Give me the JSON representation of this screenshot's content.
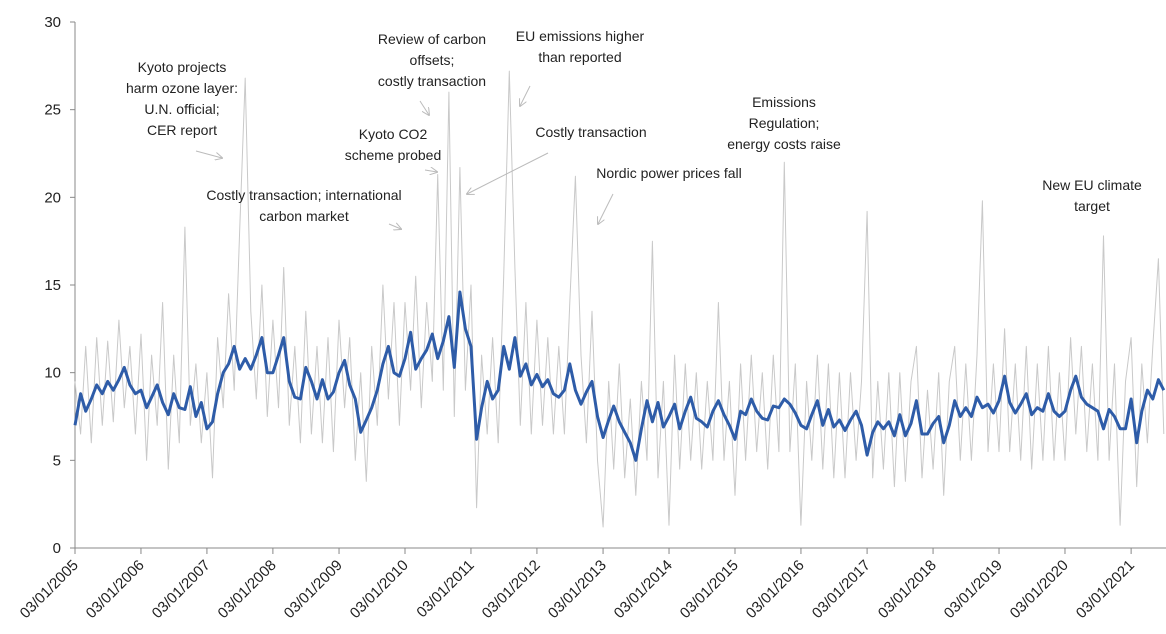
{
  "chart_data": {
    "type": "line",
    "x": [
      "2005-01-03",
      "2005-02-03",
      "2005-03-03",
      "2005-04-03",
      "2005-05-03",
      "2005-06-03",
      "2005-07-03",
      "2005-08-03",
      "2005-09-03",
      "2005-10-03",
      "2005-11-03",
      "2005-12-03",
      "2006-01-03",
      "2006-02-03",
      "2006-03-03",
      "2006-04-03",
      "2006-05-03",
      "2006-06-03",
      "2006-07-03",
      "2006-08-03",
      "2006-09-03",
      "2006-10-03",
      "2006-11-03",
      "2006-12-03",
      "2007-01-03",
      "2007-02-03",
      "2007-03-03",
      "2007-04-03",
      "2007-05-03",
      "2007-06-03",
      "2007-07-03",
      "2007-08-03",
      "2007-09-03",
      "2007-10-03",
      "2007-11-03",
      "2007-12-03",
      "2008-01-03",
      "2008-02-03",
      "2008-03-03",
      "2008-04-03",
      "2008-05-03",
      "2008-06-03",
      "2008-07-03",
      "2008-08-03",
      "2008-09-03",
      "2008-10-03",
      "2008-11-03",
      "2008-12-03",
      "2009-01-03",
      "2009-02-03",
      "2009-03-03",
      "2009-04-03",
      "2009-05-03",
      "2009-06-03",
      "2009-07-03",
      "2009-08-03",
      "2009-09-03",
      "2009-10-03",
      "2009-11-03",
      "2009-12-03",
      "2010-01-03",
      "2010-02-03",
      "2010-03-03",
      "2010-04-03",
      "2010-05-03",
      "2010-06-03",
      "2010-07-03",
      "2010-08-03",
      "2010-09-03",
      "2010-10-03",
      "2010-11-03",
      "2010-12-03",
      "2011-01-03",
      "2011-02-03",
      "2011-03-03",
      "2011-04-03",
      "2011-05-03",
      "2011-06-03",
      "2011-07-03",
      "2011-08-03",
      "2011-09-03",
      "2011-10-03",
      "2011-11-03",
      "2011-12-03",
      "2012-01-03",
      "2012-02-03",
      "2012-03-03",
      "2012-04-03",
      "2012-05-03",
      "2012-06-03",
      "2012-07-03",
      "2012-08-03",
      "2012-09-03",
      "2012-10-03",
      "2012-11-03",
      "2012-12-03",
      "2013-01-03",
      "2013-02-03",
      "2013-03-03",
      "2013-04-03",
      "2013-05-03",
      "2013-06-03",
      "2013-07-03",
      "2013-08-03",
      "2013-09-03",
      "2013-10-03",
      "2013-11-03",
      "2013-12-03",
      "2014-01-03",
      "2014-02-03",
      "2014-03-03",
      "2014-04-03",
      "2014-05-03",
      "2014-06-03",
      "2014-07-03",
      "2014-08-03",
      "2014-09-03",
      "2014-10-03",
      "2014-11-03",
      "2014-12-03",
      "2015-01-03",
      "2015-02-03",
      "2015-03-03",
      "2015-04-03",
      "2015-05-03",
      "2015-06-03",
      "2015-07-03",
      "2015-08-03",
      "2015-09-03",
      "2015-10-03",
      "2015-11-03",
      "2015-12-03",
      "2016-01-03",
      "2016-02-03",
      "2016-03-03",
      "2016-04-03",
      "2016-05-03",
      "2016-06-03",
      "2016-07-03",
      "2016-08-03",
      "2016-09-03",
      "2016-10-03",
      "2016-11-03",
      "2016-12-03",
      "2017-01-03",
      "2017-02-03",
      "2017-03-03",
      "2017-04-03",
      "2017-05-03",
      "2017-06-03",
      "2017-07-03",
      "2017-08-03",
      "2017-09-03",
      "2017-10-03",
      "2017-11-03",
      "2017-12-03",
      "2018-01-03",
      "2018-02-03",
      "2018-03-03",
      "2018-04-03",
      "2018-05-03",
      "2018-06-03",
      "2018-07-03",
      "2018-08-03",
      "2018-09-03",
      "2018-10-03",
      "2018-11-03",
      "2018-12-03",
      "2019-01-03",
      "2019-02-03",
      "2019-03-03",
      "2019-04-03",
      "2019-05-03",
      "2019-06-03",
      "2019-07-03",
      "2019-08-03",
      "2019-09-03",
      "2019-10-03",
      "2019-11-03",
      "2019-12-03",
      "2020-01-03",
      "2020-02-03",
      "2020-03-03",
      "2020-04-03",
      "2020-05-03",
      "2020-06-03",
      "2020-07-03",
      "2020-08-03",
      "2020-09-03",
      "2020-10-03",
      "2020-11-03",
      "2020-12-03",
      "2021-01-03",
      "2021-02-03",
      "2021-03-03",
      "2021-04-03",
      "2021-05-03",
      "2021-06-03",
      "2021-07-03"
    ],
    "series": [
      {
        "color": "#c9c9c9",
        "width": 1,
        "values": [
          9.5,
          6.5,
          11.5,
          6.0,
          12.0,
          7.0,
          11.8,
          7.2,
          13.0,
          8.0,
          11.5,
          6.5,
          12.2,
          5.0,
          11.0,
          7.0,
          14.0,
          4.5,
          11.0,
          6.0,
          18.3,
          7.0,
          10.5,
          6.0,
          10.0,
          4.0,
          12.0,
          8.0,
          14.5,
          9.0,
          18.0,
          26.8,
          13.5,
          8.5,
          15.0,
          7.5,
          13.0,
          8.0,
          16.0,
          7.0,
          11.5,
          6.0,
          13.5,
          6.5,
          11.5,
          6.0,
          12.0,
          5.5,
          13.0,
          8.0,
          12.0,
          5.0,
          10.0,
          3.8,
          11.5,
          7.0,
          15.0,
          8.5,
          14.0,
          7.0,
          14.0,
          9.0,
          15.5,
          8.0,
          14.0,
          9.5,
          21.3,
          9.0,
          26.0,
          7.5,
          21.7,
          9.0,
          15.0,
          2.3,
          11.0,
          6.5,
          12.0,
          6.0,
          15.5,
          27.2,
          16.0,
          7.0,
          14.0,
          6.5,
          13.0,
          7.0,
          12.0,
          6.5,
          11.5,
          6.5,
          14.0,
          21.2,
          11.0,
          6.0,
          13.5,
          5.0,
          1.2,
          9.5,
          4.5,
          10.5,
          4.0,
          8.5,
          3.0,
          9.5,
          5.0,
          17.5,
          4.0,
          9.5,
          1.3,
          11.0,
          4.5,
          10.5,
          5.0,
          10.0,
          4.5,
          9.5,
          5.0,
          14.0,
          5.0,
          9.5,
          3.0,
          10.5,
          5.0,
          11.0,
          5.5,
          10.0,
          4.5,
          11.0,
          5.5,
          22.0,
          5.5,
          10.5,
          1.3,
          9.5,
          5.0,
          11.0,
          4.5,
          10.5,
          4.0,
          10.0,
          4.0,
          10.0,
          5.0,
          9.5,
          19.2,
          4.0,
          9.5,
          4.5,
          10.0,
          3.5,
          10.0,
          3.8,
          9.5,
          11.5,
          4.0,
          9.0,
          4.5,
          10.0,
          3.0,
          9.5,
          11.5,
          5.0,
          10.5,
          5.0,
          11.0,
          19.8,
          5.5,
          10.5,
          5.5,
          12.5,
          5.5,
          10.5,
          5.0,
          11.5,
          4.5,
          10.5,
          5.0,
          11.5,
          5.0,
          10.0,
          5.0,
          12.0,
          6.5,
          11.5,
          5.5,
          10.5,
          5.0,
          17.8,
          5.0,
          10.5,
          1.3,
          9.5,
          12.0,
          3.5,
          10.5,
          6.0,
          11.5,
          16.5,
          6.5
        ]
      },
      {
        "color": "#2e5ca8",
        "width": 3,
        "values": [
          7.0,
          8.8,
          7.8,
          8.5,
          9.3,
          8.8,
          9.5,
          9.0,
          9.6,
          10.3,
          9.3,
          8.8,
          9.0,
          8.0,
          8.6,
          9.3,
          8.3,
          7.6,
          8.8,
          8.0,
          7.9,
          9.2,
          7.5,
          8.3,
          6.8,
          7.2,
          8.8,
          10.0,
          10.5,
          11.5,
          10.2,
          10.8,
          10.2,
          11.0,
          12.0,
          10.0,
          10.0,
          11.0,
          12.0,
          9.5,
          8.6,
          8.5,
          10.3,
          9.5,
          8.5,
          9.6,
          8.5,
          8.9,
          10.0,
          10.7,
          9.3,
          8.5,
          6.6,
          7.3,
          8.0,
          9.0,
          10.5,
          11.5,
          10.0,
          9.8,
          10.8,
          12.3,
          10.2,
          10.8,
          11.3,
          12.2,
          10.8,
          11.8,
          13.2,
          10.3,
          14.6,
          12.5,
          11.5,
          6.2,
          8.0,
          9.5,
          8.5,
          9.0,
          11.5,
          10.2,
          12.0,
          9.8,
          10.5,
          9.3,
          9.9,
          9.2,
          9.6,
          8.8,
          8.6,
          9.0,
          10.5,
          9.0,
          8.2,
          8.9,
          9.5,
          7.5,
          6.3,
          7.3,
          8.1,
          7.2,
          6.6,
          6.0,
          5.0,
          6.8,
          8.4,
          7.2,
          8.3,
          6.9,
          7.5,
          8.2,
          6.8,
          7.8,
          8.6,
          7.4,
          7.2,
          6.9,
          7.8,
          8.4,
          7.6,
          7.0,
          6.2,
          7.8,
          7.6,
          8.5,
          7.8,
          7.4,
          7.3,
          8.1,
          8.0,
          8.5,
          8.2,
          7.7,
          7.0,
          6.8,
          7.6,
          8.4,
          7.0,
          7.9,
          6.9,
          7.3,
          6.7,
          7.3,
          7.8,
          7.0,
          5.3,
          6.6,
          7.2,
          6.8,
          7.2,
          6.4,
          7.6,
          6.4,
          7.1,
          8.4,
          6.5,
          6.5,
          7.1,
          7.5,
          6.0,
          7.0,
          8.4,
          7.5,
          8.0,
          7.5,
          8.6,
          8.0,
          8.2,
          7.7,
          8.4,
          9.8,
          8.3,
          7.7,
          8.2,
          8.8,
          7.6,
          8.0,
          7.8,
          8.8,
          7.8,
          7.5,
          7.8,
          9.0,
          9.8,
          8.6,
          8.2,
          8.0,
          7.8,
          6.8,
          7.9,
          7.5,
          6.8,
          6.8,
          8.5,
          6.0,
          7.8,
          9.0,
          8.5,
          9.6,
          9.0
        ]
      }
    ],
    "xlim": [
      "2005-01-03",
      "2021-07-15"
    ],
    "xticks": [
      {
        "value": "2005-01-03",
        "label": "03/01/2005"
      },
      {
        "value": "2006-01-03",
        "label": "03/01/2006"
      },
      {
        "value": "2007-01-03",
        "label": "03/01/2007"
      },
      {
        "value": "2008-01-03",
        "label": "03/01/2008"
      },
      {
        "value": "2009-01-03",
        "label": "03/01/2009"
      },
      {
        "value": "2010-01-03",
        "label": "03/01/2010"
      },
      {
        "value": "2011-01-03",
        "label": "03/01/2011"
      },
      {
        "value": "2012-01-03",
        "label": "03/01/2012"
      },
      {
        "value": "2013-01-03",
        "label": "03/01/2013"
      },
      {
        "value": "2014-01-03",
        "label": "03/01/2014"
      },
      {
        "value": "2015-01-03",
        "label": "03/01/2015"
      },
      {
        "value": "2016-01-03",
        "label": "03/01/2016"
      },
      {
        "value": "2017-01-03",
        "label": "03/01/2017"
      },
      {
        "value": "2018-01-03",
        "label": "03/01/2018"
      },
      {
        "value": "2019-01-03",
        "label": "03/01/2019"
      },
      {
        "value": "2020-01-03",
        "label": "03/01/2020"
      },
      {
        "value": "2021-01-03",
        "label": "03/01/2021"
      }
    ],
    "ylim": [
      0,
      30
    ],
    "yticks": [
      0,
      5,
      10,
      15,
      20,
      25,
      30
    ],
    "annotations": [
      [
        "Kyoto projects",
        "harm ozone layer:",
        "U.N. official;",
        "CER report"
      ],
      [
        "Review of carbon",
        "offsets;",
        "costly transaction"
      ],
      [
        "EU emissions higher",
        "than reported"
      ],
      [
        "Kyoto CO2",
        "scheme probed"
      ],
      [
        "Costly transaction"
      ],
      [
        "Costly transaction; international",
        "carbon market"
      ],
      [
        "Nordic power prices fall"
      ],
      [
        "Emissions",
        "Regulation;",
        "energy costs raise"
      ],
      [
        "New EU climate",
        "target"
      ]
    ]
  }
}
